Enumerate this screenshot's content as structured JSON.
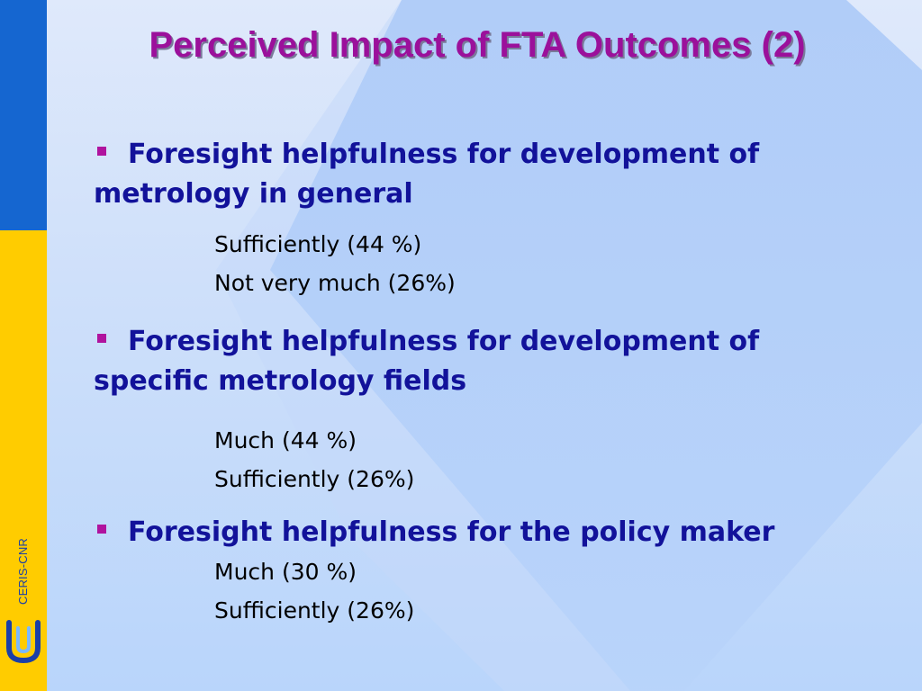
{
  "slide": {
    "title": "Perceived Impact of FTA Outcomes (2)",
    "brand": "CERIS-CNR"
  },
  "bullets": [
    {
      "heading": "Foresight helpfulness for development of metrology in general",
      "lines": [
        "Sufficiently (44 %)",
        "Not very much (26%)"
      ]
    },
    {
      "heading": "Foresight helpfulness for development of specific metrology fields",
      "lines": [
        "Much (44 %)",
        "Sufficiently (26%)"
      ]
    },
    {
      "heading": "Foresight helpfulness for the policy maker",
      "lines": [
        "Much (30 %)",
        "Sufficiently (26%)"
      ]
    }
  ],
  "colors": {
    "title": "#9b109b",
    "heading": "#12129a",
    "bullet_marker": "#b0139e",
    "left_bar_top": "#1566d0",
    "left_bar_bottom": "#ffcc00"
  },
  "icons": {
    "bullet": "square-bullet-icon",
    "logo": "ceris-cnr-logo"
  }
}
